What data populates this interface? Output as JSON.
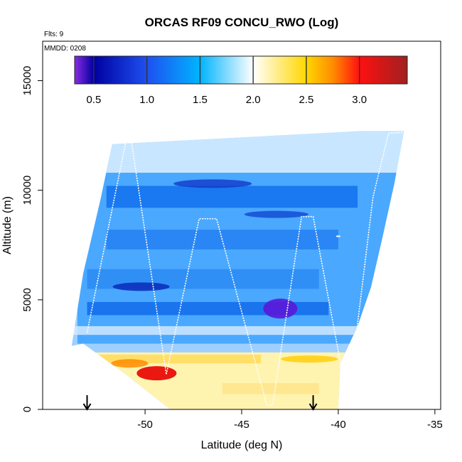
{
  "chart_data": {
    "type": "heatmap",
    "title": "ORCAS RF09 CONCU_RWO (Log)",
    "annotations": {
      "flights": "Flts: 9",
      "date": "MMDD: 0208"
    },
    "xlabel": "Latitude (deg N)",
    "ylabel": "Altitude (m)",
    "xlim": [
      -55.3,
      -34.7
    ],
    "ylim": [
      0,
      16800
    ],
    "x_ticks": [
      -50,
      -45,
      -40,
      -35
    ],
    "x_tick_labels": [
      "-50",
      "-45",
      "-40",
      "-35"
    ],
    "y_ticks": [
      0,
      5000,
      10000,
      15000
    ],
    "y_tick_labels": [
      "0",
      "5000",
      "10000",
      "15000"
    ],
    "colorbar": {
      "range": [
        0.32,
        3.45
      ],
      "ticks": [
        0.5,
        1.0,
        1.5,
        2.0,
        2.5,
        3.0
      ],
      "tick_labels": [
        "0.5",
        "1.0",
        "1.5",
        "2.0",
        "2.5",
        "3.0"
      ],
      "stops": [
        {
          "value": 0.32,
          "color": "#8a2be2"
        },
        {
          "value": 0.5,
          "color": "#0000a0"
        },
        {
          "value": 1.0,
          "color": "#1e50f0"
        },
        {
          "value": 1.5,
          "color": "#00b4ff"
        },
        {
          "value": 2.0,
          "color": "#ffffff"
        },
        {
          "value": 2.5,
          "color": "#ffd700"
        },
        {
          "value": 2.75,
          "color": "#ff8c00"
        },
        {
          "value": 3.0,
          "color": "#ff1010"
        },
        {
          "value": 3.45,
          "color": "#a02020"
        }
      ]
    },
    "flight_track": [
      [
        -53.0,
        3500
      ],
      [
        -51.0,
        12200
      ],
      [
        -50.7,
        12200
      ],
      [
        -48.9,
        1600
      ],
      [
        -47.2,
        8700
      ],
      [
        -46.3,
        8700
      ],
      [
        -43.7,
        200
      ],
      [
        -43.4,
        200
      ],
      [
        -41.9,
        8800
      ],
      [
        -41.3,
        8800
      ],
      [
        -39.5,
        300
      ],
      [
        -38.2,
        9700
      ],
      [
        -37.4,
        12600
      ],
      [
        -35.1,
        12700
      ]
    ],
    "track_stubs": [
      [
        [
          -40.1,
          7900
        ],
        [
          -39.9,
          7900
        ]
      ]
    ],
    "arrows_x": [
      -53.0,
      -41.3
    ],
    "colors": {
      "track": "#ffffff",
      "axis": "#000000"
    }
  }
}
